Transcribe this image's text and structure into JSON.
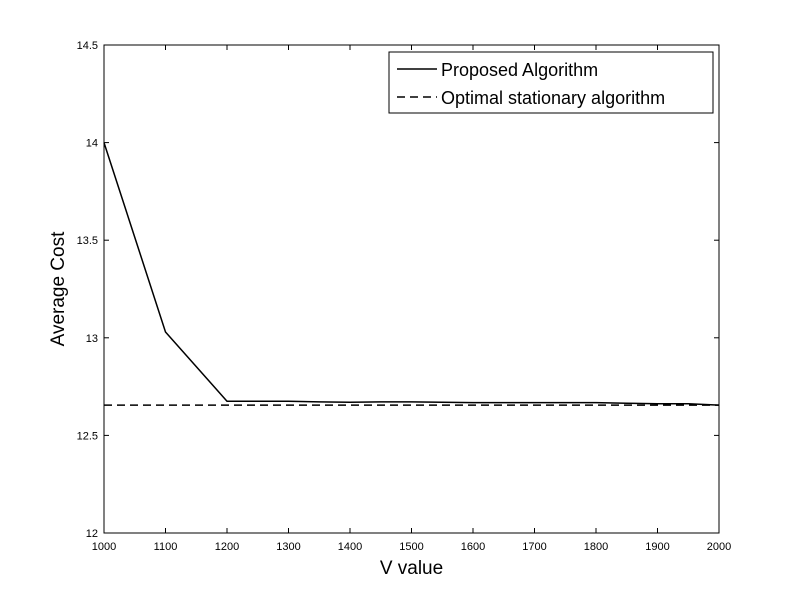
{
  "chart_data": {
    "type": "line",
    "title": "",
    "xlabel": "V value",
    "ylabel": "Average Cost",
    "xlim": [
      1000,
      2000
    ],
    "ylim": [
      12,
      14.5
    ],
    "xticks": [
      1000,
      1100,
      1200,
      1300,
      1400,
      1500,
      1600,
      1700,
      1800,
      1900,
      2000
    ],
    "yticks": [
      12,
      12.5,
      13,
      13.5,
      14,
      14.5
    ],
    "xtick_labels": [
      "1000",
      "1100",
      "1200",
      "1300",
      "1400",
      "1500",
      "1600",
      "1700",
      "1800",
      "1900",
      "2000"
    ],
    "ytick_labels": [
      "12",
      "12.5",
      "13",
      "13.5",
      "14",
      "14.5"
    ],
    "grid": false,
    "legend_position": "top-right",
    "series": [
      {
        "name": "Proposed Algorithm",
        "style": "solid",
        "color": "#000000",
        "x": [
          1000,
          1100,
          1200,
          1250,
          1300,
          1350,
          1400,
          1450,
          1500,
          1550,
          1600,
          1650,
          1700,
          1750,
          1800,
          1850,
          1900,
          1950,
          2000
        ],
        "y": [
          14.0,
          13.03,
          12.675,
          12.675,
          12.675,
          12.672,
          12.67,
          12.672,
          12.672,
          12.67,
          12.668,
          12.668,
          12.668,
          12.668,
          12.668,
          12.665,
          12.662,
          12.662,
          12.655
        ]
      },
      {
        "name": "Optimal stationary algorithm",
        "style": "dashed",
        "color": "#000000",
        "x": [
          1000,
          2000
        ],
        "y": [
          12.655,
          12.655
        ]
      }
    ]
  }
}
